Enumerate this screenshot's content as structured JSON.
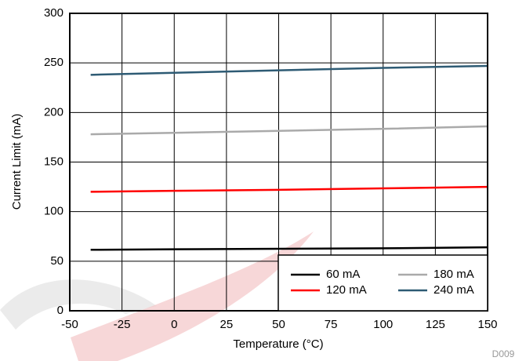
{
  "chart_data": {
    "type": "line",
    "x_label": "Temperature (°C)",
    "y_label": "Current Limit (mA)",
    "note": "D009",
    "x": [
      -40,
      0,
      50,
      100,
      150
    ],
    "series": [
      {
        "name": "60 mA",
        "color": "#000000",
        "values": [
          61.5,
          62,
          62.5,
          63,
          64
        ]
      },
      {
        "name": "180 mA",
        "color": "#aaaaaa",
        "values": [
          178,
          179.5,
          181.5,
          183.5,
          186
        ]
      },
      {
        "name": "120 mA",
        "color": "#ff0000",
        "values": [
          120,
          121,
          122,
          123.5,
          125
        ]
      },
      {
        "name": "240 mA",
        "color": "#2e5b74",
        "values": [
          238,
          240,
          242.5,
          245,
          247
        ]
      }
    ],
    "xlim": [
      -50,
      150
    ],
    "xticks": [
      -50,
      -25,
      0,
      25,
      50,
      75,
      100,
      125,
      150
    ],
    "ylim": [
      0,
      300
    ],
    "yticks": [
      0,
      50,
      100,
      150,
      200,
      250,
      300
    ],
    "grid": true,
    "legend": "lower right"
  }
}
